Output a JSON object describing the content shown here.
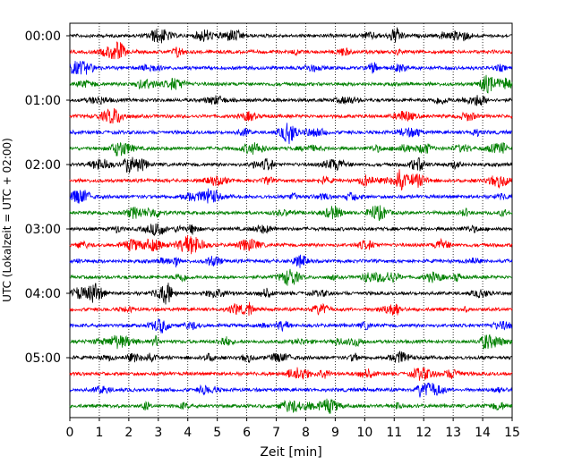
{
  "chart_data": {
    "type": "line",
    "title": "",
    "xlabel": "Zeit  [min]",
    "ylabel": "UTC (Lokalzeit = UTC + 02:00)",
    "xlim": [
      0,
      15
    ],
    "x_ticks": [
      "0",
      "1",
      "2",
      "3",
      "4",
      "5",
      "6",
      "7",
      "8",
      "9",
      "10",
      "11",
      "12",
      "13",
      "14",
      "15"
    ],
    "y_tick_labels": [
      "00:00",
      "01:00",
      "02:00",
      "03:00",
      "04:00",
      "05:00"
    ],
    "grid": "vertical dotted at every minute",
    "legend": "none",
    "trace_interval_minutes": 15,
    "trace_count": 24,
    "trace_colors": [
      "#000000",
      "#ff0000",
      "#0000ff",
      "#008000"
    ],
    "trace_start_times": [
      "00:00",
      "00:15",
      "00:30",
      "00:45",
      "01:00",
      "01:15",
      "01:30",
      "01:45",
      "02:00",
      "02:15",
      "02:30",
      "02:45",
      "03:00",
      "03:15",
      "03:30",
      "03:45",
      "04:00",
      "04:15",
      "04:30",
      "04:45",
      "05:00",
      "05:15",
      "05:30",
      "05:45"
    ]
  }
}
